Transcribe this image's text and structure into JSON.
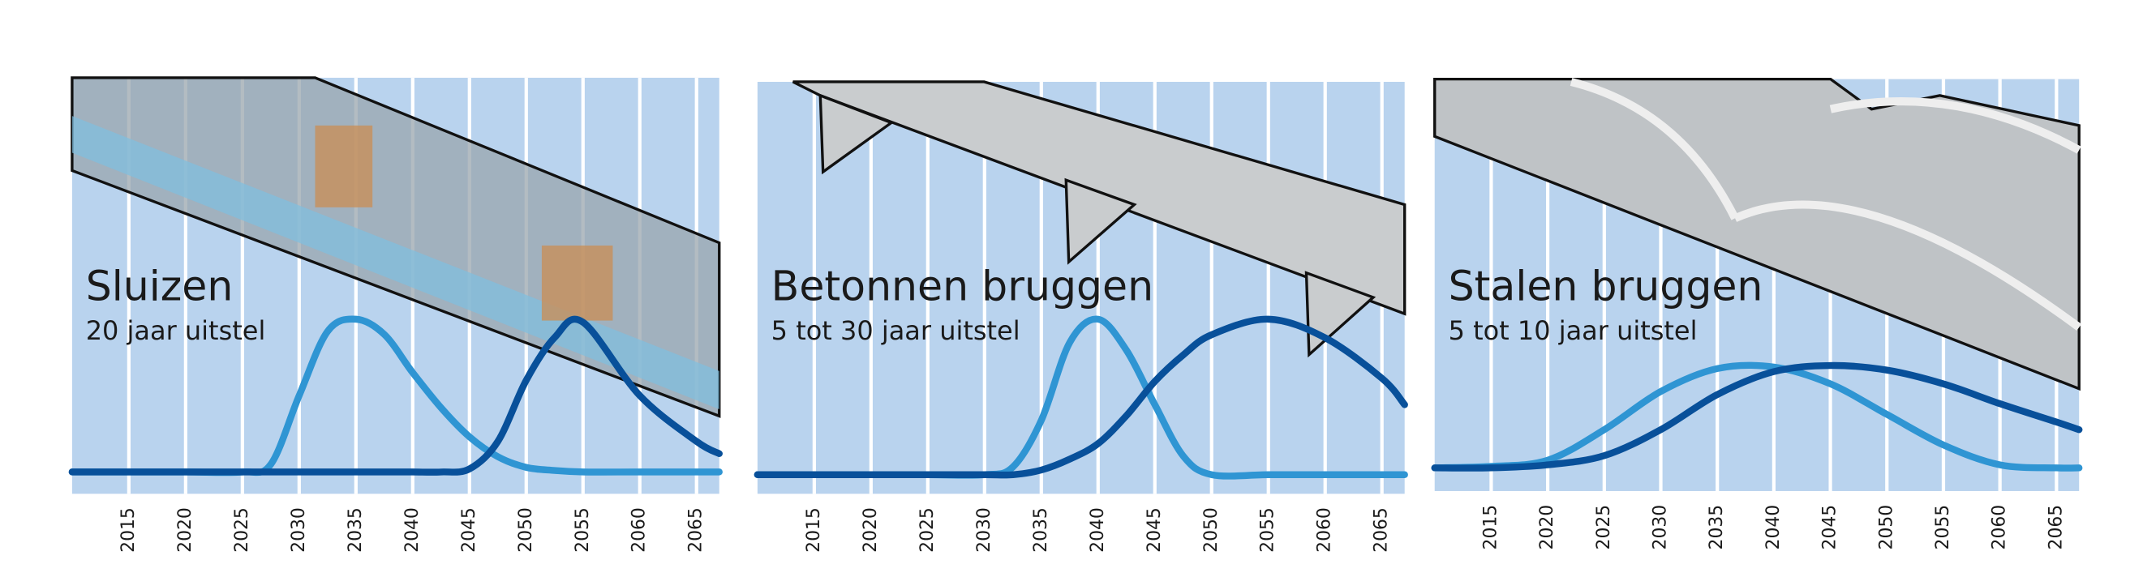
{
  "chart_data": [
    {
      "type": "line",
      "title": "Sluizen",
      "subtitle": "20 jaar uitstel",
      "x": [
        2010,
        2015,
        2020,
        2025,
        2027.5,
        2030,
        2032.5,
        2035,
        2037.5,
        2040,
        2042.5,
        2045,
        2047.5,
        2050,
        2052.5,
        2055,
        2060,
        2065,
        2067
      ],
      "series": [
        {
          "color": "#2f95d3",
          "values": [
            0,
            0,
            0,
            0,
            0.05,
            0.5,
            0.92,
            1,
            0.9,
            0.65,
            0.42,
            0.23,
            0.1,
            0.03,
            0.01,
            0,
            0,
            0,
            0
          ]
        },
        {
          "color": "#08509a",
          "values": [
            0,
            0,
            0,
            0,
            0,
            0,
            0,
            0,
            0,
            0,
            0,
            0.02,
            0.2,
            0.6,
            0.88,
            0.98,
            0.5,
            0.2,
            0.12
          ]
        }
      ],
      "xlim": [
        2010,
        2067
      ],
      "ylim": [
        0,
        1
      ],
      "xticks": [
        2015,
        2020,
        2025,
        2030,
        2035,
        2040,
        2045,
        2050,
        2055,
        2060,
        2065
      ]
    },
    {
      "type": "line",
      "title": "Betonnen bruggen",
      "subtitle": "5 tot 30 jaar uitstel",
      "x": [
        2010,
        2015,
        2020,
        2025,
        2030,
        2032.5,
        2035,
        2037.5,
        2040,
        2042.5,
        2045,
        2047.5,
        2050,
        2055,
        2060,
        2065,
        2067
      ],
      "series": [
        {
          "color": "#2f95d3",
          "values": [
            0,
            0,
            0,
            0,
            0,
            0.05,
            0.35,
            0.85,
            1,
            0.8,
            0.45,
            0.12,
            0,
            0,
            0,
            0,
            0
          ]
        },
        {
          "color": "#08509a",
          "values": [
            0,
            0,
            0,
            0,
            0,
            0,
            0.03,
            0.1,
            0.2,
            0.38,
            0.6,
            0.77,
            0.9,
            1,
            0.88,
            0.62,
            0.45
          ]
        }
      ],
      "xlim": [
        2010,
        2067
      ],
      "ylim": [
        0,
        1
      ],
      "xticks": [
        2015,
        2020,
        2025,
        2030,
        2035,
        2040,
        2045,
        2050,
        2055,
        2060,
        2065
      ]
    },
    {
      "type": "line",
      "title": "Stalen bruggen",
      "subtitle": "5 tot 10 jaar uitstel",
      "x": [
        2010,
        2015,
        2020,
        2025,
        2030,
        2035,
        2040,
        2045,
        2050,
        2055,
        2060,
        2065,
        2067
      ],
      "series": [
        {
          "color": "#2f95d3",
          "values": [
            0,
            0.01,
            0.05,
            0.25,
            0.5,
            0.65,
            0.66,
            0.55,
            0.35,
            0.15,
            0.02,
            0,
            0
          ]
        },
        {
          "color": "#08509a",
          "values": [
            0,
            0,
            0.02,
            0.08,
            0.25,
            0.48,
            0.63,
            0.67,
            0.64,
            0.55,
            0.42,
            0.3,
            0.25
          ]
        }
      ],
      "xlim": [
        2010,
        2067
      ],
      "ylim": [
        0,
        1
      ],
      "xticks": [
        2015,
        2020,
        2025,
        2030,
        2035,
        2040,
        2045,
        2050,
        2055,
        2060,
        2065
      ]
    }
  ]
}
